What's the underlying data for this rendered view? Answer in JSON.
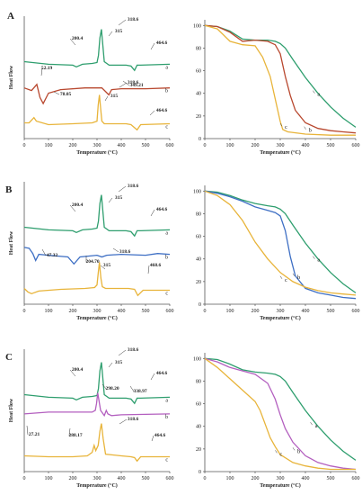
{
  "figure": {
    "panels": [
      {
        "label": "A",
        "dsc": {
          "ylabel": "Heat Flow",
          "xlabel": "Temperature (°C)",
          "xticks": [
            "0",
            "100",
            "200",
            "300",
            "400",
            "500",
            "600"
          ],
          "annotations": [
            "318.6",
            "315",
            "200.4",
            "464.6",
            "52.19",
            "78.05",
            "318.6",
            "315",
            "349.21",
            "464.6"
          ],
          "curve_letters": [
            "a",
            "b",
            "c"
          ]
        },
        "tga": {
          "xlabel": "Temperature (°C)",
          "xticks": [
            "0",
            "100",
            "200",
            "300",
            "400",
            "500",
            "600"
          ],
          "yticks": [
            "0",
            "20",
            "40",
            "60",
            "80",
            "100"
          ],
          "curve_letters": [
            "a",
            "b",
            "c"
          ]
        }
      },
      {
        "label": "B",
        "dsc": {
          "ylabel": "Heat Flow",
          "xlabel": "Temperature (°C)",
          "xticks": [
            "0",
            "100",
            "200",
            "300",
            "400",
            "500",
            "600"
          ],
          "annotations": [
            "318.6",
            "315",
            "200.4",
            "464.6",
            "47.32",
            "204.70",
            "318.6",
            "315",
            "468.6"
          ],
          "curve_letters": [
            "a",
            "b",
            "c"
          ]
        },
        "tga": {
          "xlabel": "Temperature (°C)",
          "xticks": [
            "0",
            "100",
            "200",
            "300",
            "400",
            "500",
            "600"
          ],
          "yticks": [
            "0",
            "20",
            "40",
            "60",
            "80",
            "100"
          ],
          "curve_letters": [
            "a",
            "b",
            "c"
          ]
        }
      },
      {
        "label": "C",
        "dsc": {
          "ylabel": "Heat Flow",
          "xlabel": "Temperature (°C)",
          "xticks": [
            "0",
            "100",
            "200",
            "300",
            "400",
            "500",
            "600"
          ],
          "annotations": [
            "318.6",
            "315",
            "200.4",
            "464.6",
            "298.20",
            "338.97",
            "27.21",
            "318.6",
            "288.17",
            "464.6"
          ],
          "curve_letters": [
            "a",
            "b",
            "c"
          ]
        },
        "tga": {
          "xlabel": "Temperature (°C)",
          "xticks": [
            "0",
            "100",
            "200",
            "300",
            "400",
            "500",
            "600"
          ],
          "yticks": [
            "0",
            "20",
            "40",
            "60",
            "80",
            "100"
          ],
          "curve_letters": [
            "a",
            "b",
            "c"
          ]
        }
      }
    ],
    "colors": {
      "a": "#2e9e6e",
      "b_A": "#b8472e",
      "b_B": "#3e6fc4",
      "b_C": "#b35fbf",
      "c": "#e8b43a",
      "axis": "#555555"
    }
  },
  "chart_data": [
    {
      "type": "line",
      "panel": "A",
      "kind": "DSC",
      "xlabel": "Temperature (°C)",
      "ylabel": "Heat Flow",
      "xlim": [
        0,
        600
      ],
      "series": [
        {
          "id": "a",
          "x": [
            0,
            100,
            200,
            215,
            240,
            280,
            300,
            306,
            312,
            318,
            323,
            330,
            350,
            420,
            440,
            455,
            465,
            480,
            600
          ],
          "y": [
            88,
            85,
            84,
            82,
            85,
            86,
            87,
            95,
            115,
            125,
            110,
            88,
            84,
            84,
            83,
            78,
            84,
            84,
            85
          ]
        },
        {
          "id": "b",
          "x": [
            0,
            30,
            52,
            65,
            78,
            100,
            150,
            250,
            300,
            320,
            349,
            360,
            400,
            500,
            600
          ],
          "y": [
            58,
            55,
            62,
            47,
            40,
            52,
            56,
            58,
            58,
            58,
            50,
            56,
            57,
            57,
            58
          ]
        },
        {
          "id": "c",
          "x": [
            0,
            20,
            40,
            50,
            100,
            200,
            280,
            300,
            305,
            310,
            315,
            320,
            330,
            420,
            440,
            465,
            480,
            600
          ],
          "y": [
            18,
            18,
            24,
            20,
            16,
            17,
            18,
            20,
            38,
            50,
            35,
            20,
            17,
            17,
            16,
            10,
            16,
            17
          ]
        }
      ]
    },
    {
      "type": "line",
      "panel": "A",
      "kind": "TGA",
      "xlabel": "Temperature (°C)",
      "xlim": [
        0,
        600
      ],
      "ylim": [
        0,
        100
      ],
      "series": [
        {
          "id": "a",
          "x": [
            0,
            50,
            100,
            150,
            200,
            250,
            280,
            300,
            320,
            350,
            400,
            450,
            500,
            550,
            600
          ],
          "y": [
            100,
            99,
            95,
            88,
            87,
            87,
            86,
            84,
            80,
            70,
            54,
            40,
            28,
            18,
            10
          ]
        },
        {
          "id": "b",
          "x": [
            0,
            50,
            100,
            150,
            200,
            250,
            280,
            300,
            320,
            340,
            360,
            400,
            450,
            500,
            550,
            600
          ],
          "y": [
            100,
            99,
            94,
            86,
            87,
            86,
            83,
            75,
            55,
            38,
            25,
            14,
            9,
            7,
            6,
            5
          ]
        },
        {
          "id": "c",
          "x": [
            0,
            50,
            100,
            150,
            200,
            230,
            260,
            280,
            300,
            310,
            330,
            400,
            500,
            600
          ],
          "y": [
            100,
            97,
            86,
            83,
            82,
            72,
            55,
            35,
            15,
            8,
            6,
            4,
            3,
            3
          ]
        }
      ]
    },
    {
      "type": "line",
      "panel": "B",
      "kind": "DSC",
      "xlabel": "Temperature (°C)",
      "ylabel": "Heat Flow",
      "xlim": [
        0,
        600
      ],
      "series": [
        {
          "id": "a",
          "x": [
            0,
            100,
            200,
            215,
            240,
            280,
            300,
            306,
            312,
            318,
            323,
            330,
            350,
            420,
            440,
            455,
            465,
            480,
            600
          ],
          "y": [
            88,
            85,
            84,
            82,
            85,
            86,
            87,
            95,
            115,
            125,
            110,
            88,
            84,
            84,
            83,
            78,
            84,
            84,
            85
          ]
        },
        {
          "id": "b",
          "x": [
            0,
            20,
            35,
            47,
            60,
            100,
            180,
            205,
            230,
            300,
            320,
            340,
            400,
            500,
            550,
            600
          ],
          "y": [
            65,
            64,
            58,
            50,
            57,
            56,
            54,
            46,
            54,
            56,
            54,
            56,
            57,
            56,
            58,
            57
          ]
        },
        {
          "id": "c",
          "x": [
            0,
            15,
            30,
            60,
            150,
            250,
            290,
            300,
            305,
            310,
            316,
            322,
            335,
            430,
            455,
            468,
            490,
            600
          ],
          "y": [
            18,
            14,
            12,
            15,
            17,
            18,
            19,
            22,
            35,
            48,
            30,
            20,
            18,
            18,
            17,
            10,
            16,
            16
          ]
        }
      ]
    },
    {
      "type": "line",
      "panel": "B",
      "kind": "TGA",
      "xlabel": "Temperature (°C)",
      "xlim": [
        0,
        600
      ],
      "ylim": [
        0,
        100
      ],
      "series": [
        {
          "id": "a",
          "x": [
            0,
            50,
            100,
            150,
            200,
            250,
            280,
            300,
            320,
            350,
            400,
            450,
            500,
            550,
            600
          ],
          "y": [
            100,
            99,
            96,
            92,
            89,
            87,
            86,
            84,
            80,
            70,
            54,
            40,
            28,
            18,
            10
          ]
        },
        {
          "id": "b",
          "x": [
            0,
            50,
            100,
            150,
            200,
            250,
            280,
            300,
            320,
            340,
            360,
            400,
            450,
            500,
            550,
            600
          ],
          "y": [
            100,
            98,
            95,
            91,
            86,
            83,
            81,
            78,
            65,
            42,
            25,
            14,
            10,
            8,
            6,
            5
          ]
        },
        {
          "id": "c",
          "x": [
            0,
            50,
            100,
            150,
            200,
            250,
            300,
            350,
            400,
            450,
            500,
            550,
            600
          ],
          "y": [
            100,
            96,
            88,
            74,
            55,
            40,
            28,
            20,
            15,
            12,
            10,
            9,
            8
          ]
        }
      ]
    },
    {
      "type": "line",
      "panel": "C",
      "kind": "DSC",
      "xlabel": "Temperature (°C)",
      "ylabel": "Heat Flow",
      "xlim": [
        0,
        600
      ],
      "series": [
        {
          "id": "a",
          "x": [
            0,
            100,
            200,
            215,
            240,
            280,
            300,
            306,
            312,
            318,
            323,
            330,
            350,
            420,
            440,
            455,
            465,
            480,
            600
          ],
          "y": [
            88,
            85,
            84,
            82,
            85,
            86,
            87,
            95,
            115,
            125,
            110,
            88,
            84,
            84,
            83,
            78,
            84,
            84,
            85
          ]
        },
        {
          "id": "b",
          "x": [
            0,
            100,
            200,
            280,
            293,
            298,
            303,
            315,
            330,
            338,
            345,
            360,
            400,
            600
          ],
          "y": [
            66,
            68,
            68,
            68,
            70,
            78,
            90,
            70,
            64,
            70,
            66,
            64,
            65,
            66
          ]
        },
        {
          "id": "c",
          "x": [
            0,
            100,
            200,
            260,
            280,
            288,
            295,
            305,
            312,
            318,
            325,
            335,
            400,
            440,
            455,
            465,
            480,
            600
          ],
          "y": [
            18,
            17,
            17,
            18,
            22,
            30,
            24,
            30,
            46,
            55,
            38,
            20,
            18,
            17,
            16,
            12,
            17,
            17
          ]
        }
      ]
    },
    {
      "type": "line",
      "panel": "C",
      "kind": "TGA",
      "xlabel": "Temperature (°C)",
      "xlim": [
        0,
        600
      ],
      "ylim": [
        0,
        100
      ],
      "series": [
        {
          "id": "a",
          "x": [
            0,
            50,
            100,
            150,
            200,
            250,
            280,
            300,
            320,
            350,
            400,
            450,
            500,
            550,
            600
          ],
          "y": [
            100,
            99,
            95,
            90,
            88,
            87,
            86,
            84,
            80,
            70,
            54,
            40,
            28,
            18,
            10
          ]
        },
        {
          "id": "b",
          "x": [
            0,
            50,
            100,
            150,
            200,
            250,
            280,
            300,
            320,
            350,
            400,
            450,
            500,
            550,
            600
          ],
          "y": [
            100,
            97,
            92,
            89,
            86,
            78,
            64,
            50,
            38,
            26,
            14,
            8,
            5,
            3,
            2
          ]
        },
        {
          "id": "c",
          "x": [
            0,
            50,
            100,
            150,
            200,
            220,
            240,
            260,
            280,
            300,
            350,
            400,
            450,
            500,
            600
          ],
          "y": [
            100,
            92,
            82,
            72,
            62,
            54,
            42,
            30,
            22,
            15,
            8,
            5,
            3,
            2,
            2
          ]
        }
      ]
    }
  ]
}
